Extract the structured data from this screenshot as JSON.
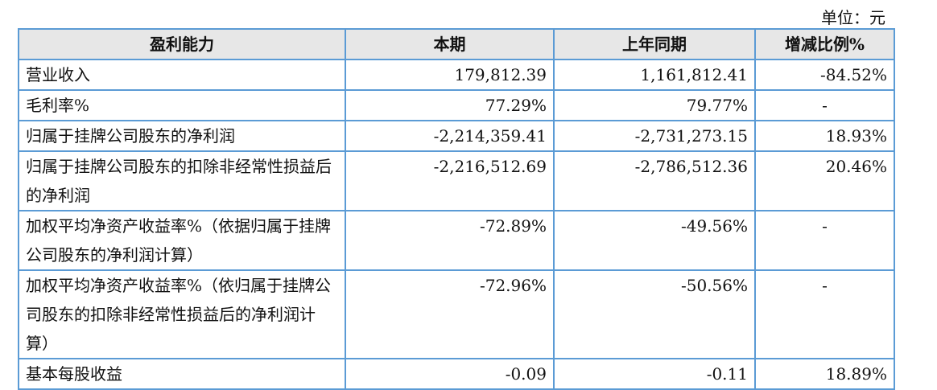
{
  "unit": "单位：元",
  "headers": [
    "盈利能力",
    "本期",
    "上年同期",
    "增减比例%"
  ],
  "rows": [
    {
      "label": "营业收入",
      "current": "179,812.39",
      "previous": "1,161,812.41",
      "change": "-84.52%"
    },
    {
      "label": "毛利率%",
      "current": "77.29%",
      "previous": "79.77%",
      "change": "-"
    },
    {
      "label": "归属于挂牌公司股东的净利润",
      "current": "-2,214,359.41",
      "previous": "-2,731,273.15",
      "change": "18.93%"
    },
    {
      "label": "归属于挂牌公司股东的扣除非经常性损益后的净利润",
      "current": "-2,216,512.69",
      "previous": "-2,786,512.36",
      "change": "20.46%"
    },
    {
      "label": "加权平均净资产收益率%（依据归属于挂牌公司股东的净利润计算）",
      "current": "-72.89%",
      "previous": "-49.56%",
      "change": "-"
    },
    {
      "label": "加权平均净资产收益率%（依归属于挂牌公司股东的扣除非经常性损益后的净利润计算）",
      "current": "-72.96%",
      "previous": "-50.56%",
      "change": "-"
    },
    {
      "label": "基本每股收益",
      "current": "-0.09",
      "previous": "-0.11",
      "change": "18.89%"
    }
  ]
}
